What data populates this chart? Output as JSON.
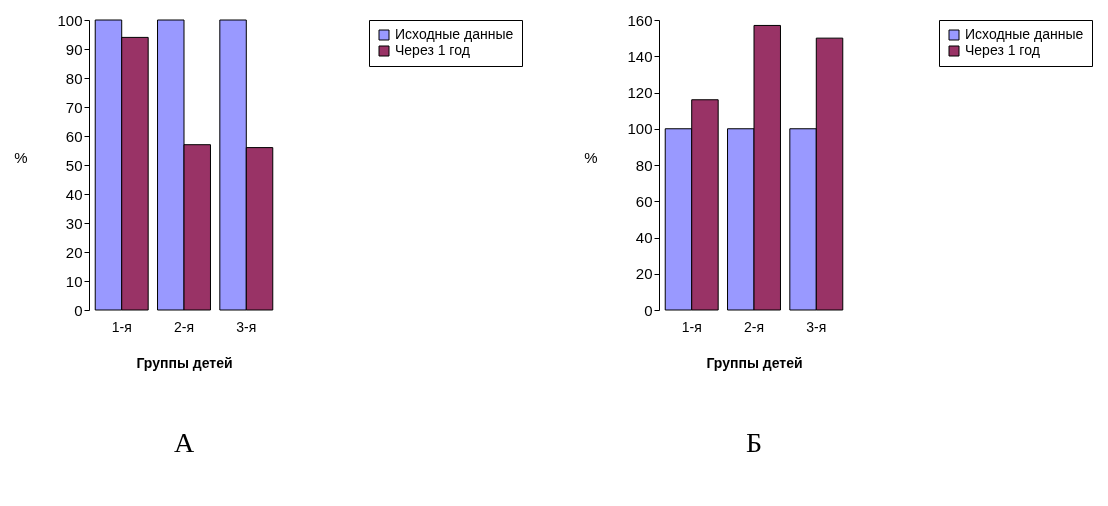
{
  "chart_data": [
    {
      "type": "bar",
      "categories": [
        "1-я",
        "2-я",
        "3-я"
      ],
      "xlabel": "Группы детей",
      "ylabel": "%",
      "ylim": [
        0,
        100
      ],
      "yticks": [
        0,
        10,
        20,
        30,
        40,
        50,
        60,
        70,
        80,
        90,
        100
      ],
      "grid": false,
      "legend": "right",
      "annotations": [
        "А"
      ],
      "series": [
        {
          "name": "Исходные данные",
          "color": "#9999ff",
          "values": [
            100,
            100,
            100
          ]
        },
        {
          "name": "Через 1 год",
          "color": "#993366",
          "values": [
            94,
            57,
            56
          ]
        }
      ]
    },
    {
      "type": "bar",
      "categories": [
        "1-я",
        "2-я",
        "3-я"
      ],
      "xlabel": "Группы детей",
      "ylabel": "%",
      "ylim": [
        0,
        160
      ],
      "yticks": [
        0,
        20,
        40,
        60,
        80,
        100,
        120,
        140,
        160
      ],
      "grid": false,
      "legend": "right",
      "annotations": [
        "Б"
      ],
      "series": [
        {
          "name": "Исходные данные",
          "color": "#9999ff",
          "values": [
            100,
            100,
            100
          ]
        },
        {
          "name": "Через 1 год",
          "color": "#993366",
          "values": [
            116,
            157,
            150
          ]
        }
      ]
    }
  ]
}
